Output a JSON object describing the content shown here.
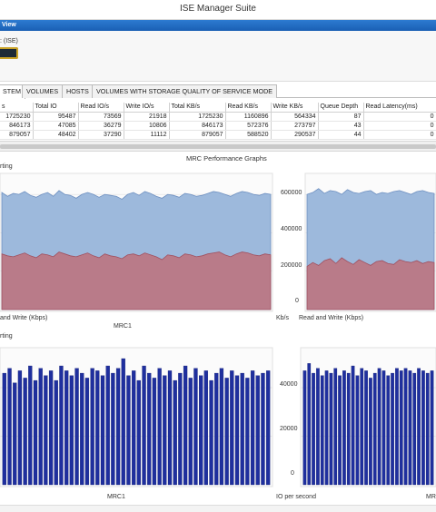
{
  "window": {
    "title": "ISE Manager Suite"
  },
  "panel": {
    "header": "View",
    "partial_label": ": (ISE)"
  },
  "tabs": [
    {
      "label": "STEM",
      "active": true
    },
    {
      "label": "VOLUMES",
      "active": false
    },
    {
      "label": "HOSTS",
      "active": false
    },
    {
      "label": "VOLUMES WITH STORAGE QUALITY OF SERVICE MODE",
      "active": false
    }
  ],
  "table": {
    "columns": [
      "s",
      "Total IO",
      "Read IO/s",
      "Write IO/s",
      "Total KB/s",
      "Read KB/s",
      "Write KB/s",
      "Queue Depth",
      "Read Latency(ms)"
    ],
    "rows": [
      [
        "1725230",
        "95487",
        "73569",
        "21918",
        "1725230",
        "1160896",
        "564334",
        "87",
        "0"
      ],
      [
        "846173",
        "47085",
        "36279",
        "10806",
        "846173",
        "572376",
        "273797",
        "43",
        "0"
      ],
      [
        "879057",
        "48402",
        "37290",
        "11112",
        "879057",
        "588520",
        "290537",
        "44",
        "0"
      ]
    ]
  },
  "graphs": {
    "section_title": "MRC Performance Graphs",
    "top_left": {
      "left_label": "rting",
      "bottom_left": "and Write (Kbps)",
      "bottom_center": "MRC1",
      "bottom_right": "Kb/s"
    },
    "top_right": {
      "bottom_label": "Read and Write (Kbps)",
      "yticks": [
        "600000",
        "400000",
        "200000",
        "0"
      ]
    },
    "bottom_left": {
      "left_label": "rting",
      "bottom_center": "MRC1",
      "bottom_right": "IO per second"
    },
    "bottom_right": {
      "yticks": [
        "40000",
        "20000",
        "0"
      ],
      "bottom_right": "MR"
    }
  },
  "colors": {
    "header_blue": "#1f66c0",
    "area_blue": "#9db9dc",
    "area_red": "#b97b89",
    "bar_blue": "#1f2f9e"
  },
  "chart_data": [
    {
      "type": "area",
      "title": "",
      "ylabel": "Kb/s",
      "xlabel": "MRC1",
      "series": [
        {
          "name": "",
          "values": [
            290000,
            280000,
            275000,
            285000,
            295000,
            280000,
            270000,
            290000,
            285000,
            275000,
            300000,
            290000,
            280000,
            275000,
            285000,
            295000,
            280000,
            270000,
            290000,
            280000,
            275000,
            265000,
            285000,
            290000,
            280000,
            295000,
            285000,
            275000,
            260000,
            285000,
            280000,
            270000,
            290000,
            285000,
            275000,
            280000,
            290000,
            295000,
            300000,
            285000,
            275000,
            290000,
            300000,
            295000,
            285000,
            280000,
            290000,
            285000
          ]
        },
        {
          "name": "",
          "values": [
            610000,
            590000,
            605000,
            600000,
            615000,
            595000,
            585000,
            600000,
            610000,
            590000,
            620000,
            600000,
            595000,
            580000,
            600000,
            610000,
            600000,
            585000,
            600000,
            595000,
            590000,
            575000,
            600000,
            610000,
            595000,
            615000,
            605000,
            590000,
            580000,
            600000,
            595000,
            585000,
            605000,
            600000,
            590000,
            595000,
            605000,
            615000,
            610000,
            600000,
            590000,
            605000,
            615000,
            610000,
            600000,
            595000,
            605000,
            600000
          ]
        }
      ]
    },
    {
      "type": "area",
      "title": "",
      "xlabel": "Read and Write (Kbps)",
      "ylim": [
        0,
        700000
      ],
      "series": [
        {
          "name": "",
          "values": [
            225000,
            245000,
            230000,
            255000,
            265000,
            240000,
            270000,
            250000,
            235000,
            260000,
            245000,
            230000,
            250000,
            255000,
            240000,
            235000,
            260000,
            250000,
            245000,
            255000,
            240000,
            250000,
            245000
          ]
        },
        {
          "name": "",
          "values": [
            600000,
            610000,
            630000,
            605000,
            620000,
            615000,
            600000,
            625000,
            610000,
            605000,
            615000,
            620000,
            600000,
            610000,
            605000,
            615000,
            620000,
            610000,
            600000,
            615000,
            620000,
            610000,
            605000
          ]
        }
      ]
    },
    {
      "type": "bar",
      "title": "",
      "xlabel": "MRC1",
      "ylabel": "IO per second",
      "values": [
        46000,
        48000,
        42000,
        47000,
        44000,
        49000,
        43000,
        48000,
        45000,
        47000,
        43000,
        49000,
        47000,
        45000,
        48000,
        46000,
        44000,
        48000,
        47000,
        45000,
        49000,
        46000,
        48000,
        52000,
        45000,
        47000,
        43000,
        49000,
        46000,
        44000,
        48000,
        45000,
        47000,
        43000,
        46000,
        49000,
        44000,
        48000,
        45000,
        47000,
        43000,
        46000,
        48000,
        44000,
        47000,
        45000,
        46000,
        44000,
        47000,
        45000,
        46000,
        47000
      ]
    },
    {
      "type": "bar",
      "title": "",
      "ylim": [
        0,
        55000
      ],
      "values": [
        47000,
        50000,
        46000,
        48000,
        45000,
        47000,
        46000,
        48000,
        45000,
        47000,
        46000,
        49000,
        45000,
        48000,
        47000,
        44000,
        46000,
        48000,
        47000,
        45000,
        46000,
        48000,
        47000,
        48000,
        47000,
        46000,
        48000,
        47000,
        46000,
        47000
      ]
    }
  ]
}
